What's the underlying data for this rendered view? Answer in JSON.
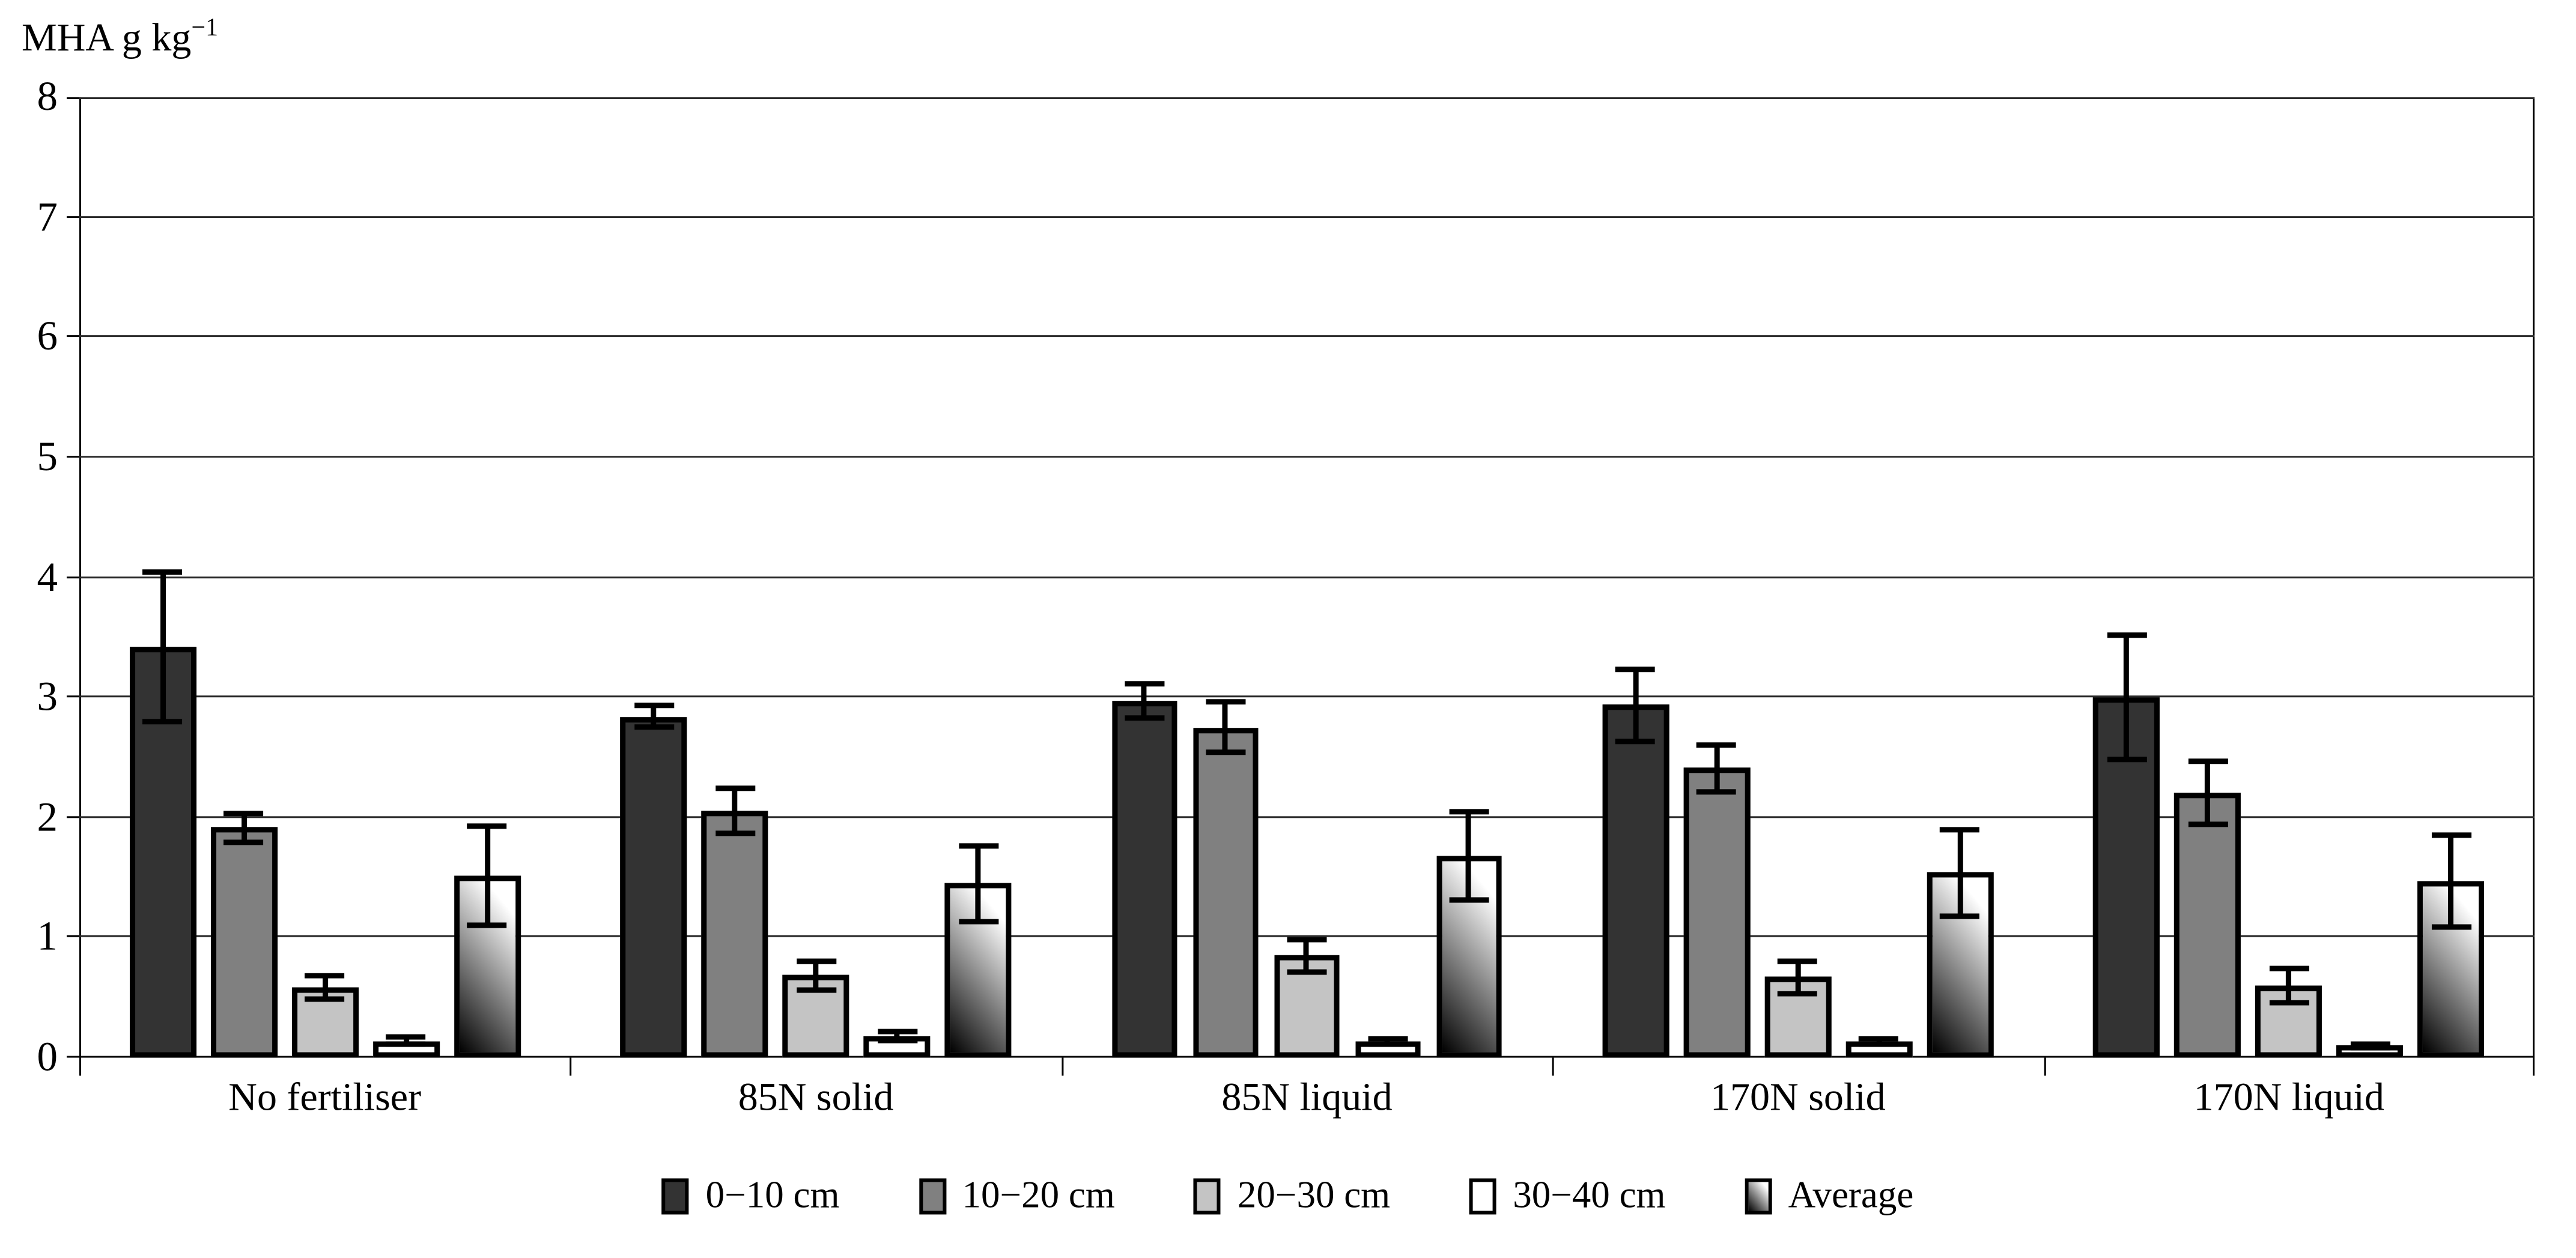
{
  "chart_data": {
    "type": "bar",
    "title": "",
    "ylabel_base": "MHA g kg",
    "ylabel_exponent": "−1",
    "xlabel": "",
    "ylim": [
      0,
      8
    ],
    "ytick_labels": [
      "0",
      "1",
      "2",
      "3",
      "4",
      "5",
      "6",
      "7",
      "8"
    ],
    "grid": true,
    "legend_position": "bottom",
    "plot_border": true,
    "background_color": "#ffffff",
    "categories": [
      "No fertiliser",
      "85N solid",
      "85N liquid",
      "170N solid",
      "170N liquid"
    ],
    "series": [
      {
        "name": "0−10 cm",
        "fill": "#333333",
        "values": [
          3.42,
          2.84,
          2.97,
          2.94,
          3.0
        ],
        "errors": [
          0.62,
          0.09,
          0.14,
          0.3,
          0.52
        ]
      },
      {
        "name": "10−20 cm",
        "fill": "#808080",
        "values": [
          1.92,
          2.06,
          2.75,
          2.41,
          2.21
        ],
        "errors": [
          0.12,
          0.19,
          0.21,
          0.19,
          0.26
        ]
      },
      {
        "name": "20−30 cm",
        "fill": "#c4c4c4",
        "values": [
          0.59,
          0.69,
          0.85,
          0.67,
          0.6
        ],
        "errors": [
          0.1,
          0.12,
          0.14,
          0.14,
          0.14
        ]
      },
      {
        "name": "30−40 cm",
        "fill": "#ffffff",
        "values": [
          0.14,
          0.18,
          0.14,
          0.14,
          0.1
        ],
        "errors": [
          0.03,
          0.04,
          0.02,
          0.02,
          0.02
        ]
      },
      {
        "name": "Average",
        "fill": "linear-gradient(50deg, #000000 0%, #777777 40%, #ffffff 85%)",
        "values": [
          1.52,
          1.45,
          1.68,
          1.54,
          1.47
        ],
        "errors": [
          0.41,
          0.32,
          0.37,
          0.36,
          0.38
        ]
      }
    ]
  }
}
